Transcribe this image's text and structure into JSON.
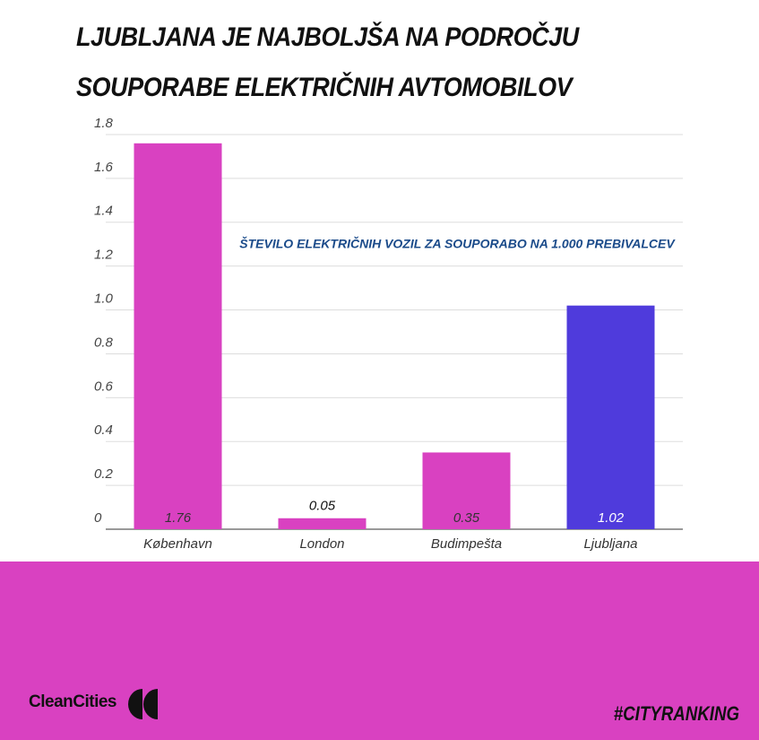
{
  "chart_data": {
    "type": "bar",
    "title": "LJUBLJANA JE NAJBOLJŠA NA PODROČJU SOUPORABE ELEKTRIČNIH AVTOMOBILOV",
    "annotation": "ŠTEVILO ELEKTRIČNIH VOZIL ZA SOUPORABO NA 1.000 PREBIVALCEV",
    "categories": [
      "København",
      "London",
      "Budimpešta",
      "Ljubljana"
    ],
    "values": [
      1.76,
      0.05,
      0.35,
      1.02
    ],
    "colors": [
      "#d941c1",
      "#d941c1",
      "#d941c1",
      "#4f3bdc"
    ],
    "ylim": [
      0,
      1.8
    ],
    "yticks": [
      0,
      0.2,
      0.4,
      0.6,
      0.8,
      {
        "value": 1,
        "label": "1.0"
      },
      1.2,
      1.4,
      1.6,
      1.8
    ],
    "grid": true
  },
  "footer": {
    "brand": "CleanCities",
    "hashtag": "#CITYRANKING"
  }
}
